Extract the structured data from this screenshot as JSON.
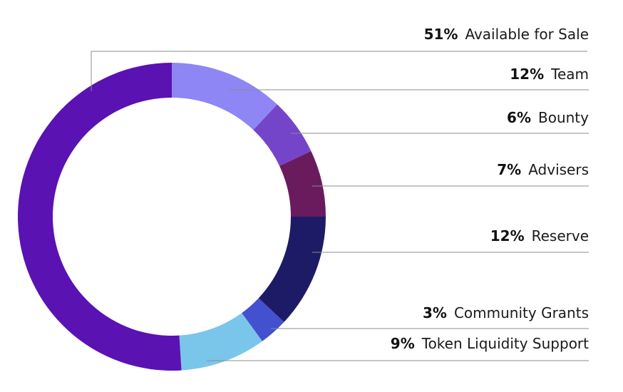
{
  "chart_data": {
    "type": "pie",
    "variant": "donut",
    "title": "",
    "legend_placement": "right",
    "slices": [
      {
        "name": "Team",
        "percent_label": "12%",
        "value": 12,
        "color": "#8e86f5"
      },
      {
        "name": "Bounty",
        "percent_label": "6%",
        "value": 6,
        "color": "#7545c9"
      },
      {
        "name": "Advisers",
        "percent_label": "7%",
        "value": 7,
        "color": "#6a1b5e"
      },
      {
        "name": "Reserve",
        "percent_label": "12%",
        "value": 12,
        "color": "#1e1b66"
      },
      {
        "name": "Community Grants",
        "percent_label": "3%",
        "value": 3,
        "color": "#4350cf"
      },
      {
        "name": "Token Liquidity Support",
        "percent_label": "9%",
        "value": 9,
        "color": "#79c6ea"
      },
      {
        "name": "Available for Sale",
        "percent_label": "51%",
        "value": 51,
        "color": "#5a12b2"
      }
    ]
  }
}
